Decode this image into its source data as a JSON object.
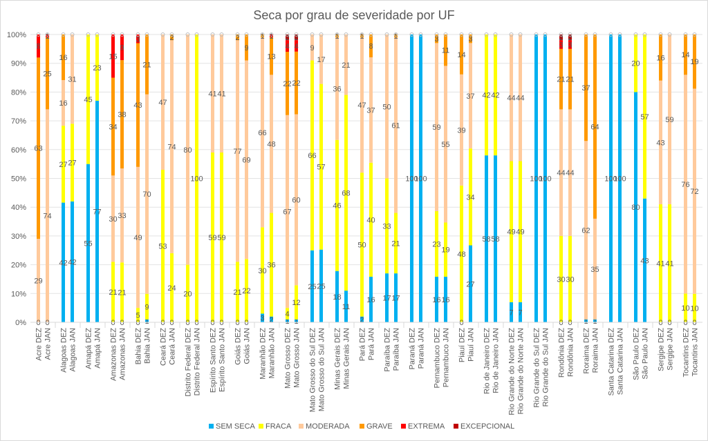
{
  "chart_data": {
    "type": "bar",
    "stacked": "percent",
    "title": "Seca por grau de severidade por UF",
    "xlabel": "",
    "ylabel": "",
    "ylim": [
      0,
      100
    ],
    "yticks": [
      "0%",
      "10%",
      "20%",
      "30%",
      "40%",
      "50%",
      "60%",
      "70%",
      "80%",
      "90%",
      "100%"
    ],
    "grid": true,
    "legend": "bottom",
    "series_names": [
      "SEM SECA",
      "FRACA",
      "MODERADA",
      "GRAVE",
      "EXTREMA",
      "EXCEPCIONAL"
    ],
    "colors": [
      "#00B0F0",
      "#FFFF00",
      "#FFCA9C",
      "#FF9900",
      "#FF0000",
      "#C00000"
    ],
    "groups": [
      {
        "uf": "Acre",
        "bars": [
          {
            "label": "Acre DEZ",
            "values": [
              0,
              0,
              29,
              63,
              8,
              0
            ]
          },
          {
            "label": "Acre JAN",
            "values": [
              0,
              0,
              74,
              25,
              1,
              0
            ]
          }
        ]
      },
      {
        "uf": "Alagoas",
        "bars": [
          {
            "label": "Alagoas DEZ",
            "values": [
              42,
              27,
              16,
              16,
              0,
              0
            ]
          },
          {
            "label": "Alagoas JAN",
            "values": [
              42,
              27,
              31,
              0,
              0,
              0
            ]
          }
        ]
      },
      {
        "uf": "Amapá",
        "bars": [
          {
            "label": "Amapá DEZ",
            "values": [
              55,
              45,
              0,
              0,
              0,
              0
            ]
          },
          {
            "label": "Amapá JAN",
            "values": [
              77,
              23,
              0,
              0,
              0,
              0
            ]
          }
        ]
      },
      {
        "uf": "Amazonas",
        "bars": [
          {
            "label": "Amazonas DEZ",
            "values": [
              0,
              21,
              30,
              34,
              15,
              0
            ]
          },
          {
            "label": "Amazonas JAN",
            "values": [
              0,
              21,
              33,
              38,
              9,
              0
            ]
          }
        ]
      },
      {
        "uf": "Bahia",
        "bars": [
          {
            "label": "Bahia DEZ",
            "values": [
              0,
              5,
              49,
              43,
              3,
              0
            ]
          },
          {
            "label": "Bahia JAN",
            "values": [
              1,
              9,
              70,
              21,
              0,
              0
            ]
          }
        ]
      },
      {
        "uf": "Ceará",
        "bars": [
          {
            "label": "Ceará DEZ",
            "values": [
              0,
              53,
              47,
              0,
              0,
              0
            ]
          },
          {
            "label": "Ceará JAN",
            "values": [
              0,
              24,
              74,
              2,
              0,
              0
            ]
          }
        ]
      },
      {
        "uf": "Distrito Federal",
        "bars": [
          {
            "label": "Distrito Federal DEZ",
            "values": [
              0,
              20,
              80,
              0,
              0,
              0
            ]
          },
          {
            "label": "Distrito Federal JAN",
            "values": [
              0,
              100,
              0,
              0,
              0,
              0
            ]
          }
        ]
      },
      {
        "uf": "Espírito Santo",
        "bars": [
          {
            "label": "Espírito Santo DEZ",
            "values": [
              0,
              59,
              41,
              0,
              0,
              0
            ]
          },
          {
            "label": "Espírito Santo JAN",
            "values": [
              0,
              59,
              41,
              0,
              0,
              0
            ]
          }
        ]
      },
      {
        "uf": "Goiás",
        "bars": [
          {
            "label": "Goiás DEZ",
            "values": [
              0,
              21,
              77,
              2,
              0,
              0
            ]
          },
          {
            "label": "Goiás JAN",
            "values": [
              0,
              22,
              69,
              9,
              0,
              0
            ]
          }
        ]
      },
      {
        "uf": "Maranhão",
        "bars": [
          {
            "label": "Maranhão DEZ",
            "values": [
              3,
              30,
              66,
              1,
              0,
              0
            ]
          },
          {
            "label": "Maranhão JAN",
            "values": [
              2,
              36,
              48,
              13,
              1,
              0
            ]
          }
        ]
      },
      {
        "uf": "Mato Grosso",
        "bars": [
          {
            "label": "Mato Grosso DEZ",
            "values": [
              1,
              4,
              67,
              22,
              4,
              2
            ]
          },
          {
            "label": "Mato Grosso JAN",
            "values": [
              1,
              12,
              60,
              22,
              4,
              2
            ]
          }
        ]
      },
      {
        "uf": "Mato Grosso do Sul",
        "bars": [
          {
            "label": "Mato Grosso do Sul DEZ",
            "values": [
              25,
              66,
              9,
              0,
              0,
              0
            ]
          },
          {
            "label": "Mato Grosso do Sul JAN",
            "values": [
              25,
              57,
              17,
              0,
              0,
              0
            ]
          }
        ]
      },
      {
        "uf": "Minas Gerais",
        "bars": [
          {
            "label": "Minas Gerais DEZ",
            "values": [
              18,
              46,
              36,
              1,
              0,
              0
            ]
          },
          {
            "label": "Minas Gerais JAN",
            "values": [
              11,
              68,
              21,
              0,
              0,
              0
            ]
          }
        ]
      },
      {
        "uf": "Pará",
        "bars": [
          {
            "label": "Pará DEZ",
            "values": [
              2,
              50,
              47,
              1,
              0,
              0
            ]
          },
          {
            "label": "Pará JAN",
            "values": [
              16,
              40,
              37,
              8,
              0,
              0
            ]
          }
        ]
      },
      {
        "uf": "Paraíba",
        "bars": [
          {
            "label": "Paraíba DEZ",
            "values": [
              17,
              33,
              50,
              0,
              0,
              0
            ]
          },
          {
            "label": "Paraíba JAN",
            "values": [
              17,
              21,
              61,
              1,
              0,
              0
            ]
          }
        ]
      },
      {
        "uf": "Paraná",
        "bars": [
          {
            "label": "Paraná DEZ",
            "values": [
              100,
              0,
              0,
              0,
              0,
              0
            ]
          },
          {
            "label": "Paraná JAN",
            "values": [
              100,
              0,
              0,
              0,
              0,
              0
            ]
          }
        ]
      },
      {
        "uf": "Pernambuco",
        "bars": [
          {
            "label": "Pernambuco DEZ",
            "values": [
              16,
              23,
              59,
              3,
              0,
              0
            ]
          },
          {
            "label": "Pernambuco JAN",
            "values": [
              16,
              19,
              55,
              11,
              0,
              0
            ]
          }
        ]
      },
      {
        "uf": "Piauí",
        "bars": [
          {
            "label": "Piauí DEZ",
            "values": [
              0,
              48,
              39,
              14,
              0,
              0
            ]
          },
          {
            "label": "Piauí JAN",
            "values": [
              27,
              34,
              37,
              3,
              0,
              0
            ]
          }
        ]
      },
      {
        "uf": "Rio de Janeiro",
        "bars": [
          {
            "label": "Rio de Janeiro DEZ",
            "values": [
              58,
              42,
              0,
              0,
              0,
              0
            ]
          },
          {
            "label": "Rio de Janeiro JAN",
            "values": [
              58,
              42,
              0,
              0,
              0,
              0
            ]
          }
        ]
      },
      {
        "uf": "Rio Grande do Norte",
        "bars": [
          {
            "label": "Rio Grande do Norte DEZ",
            "values": [
              7,
              49,
              44,
              0,
              0,
              0
            ]
          },
          {
            "label": "Rio Grande do Norte JAN",
            "values": [
              7,
              49,
              44,
              0,
              0,
              0
            ]
          }
        ]
      },
      {
        "uf": "Rio Grande do Sul",
        "bars": [
          {
            "label": "Rio Grande do Sul DEZ",
            "values": [
              100,
              0,
              0,
              0,
              0,
              0
            ]
          },
          {
            "label": "Rio Grande do Sul JAN",
            "values": [
              100,
              0,
              0,
              0,
              0,
              0
            ]
          }
        ]
      },
      {
        "uf": "Rondônia",
        "bars": [
          {
            "label": "Rondônia DEZ",
            "values": [
              0,
              30,
              44,
              21,
              3,
              2
            ]
          },
          {
            "label": "Rondônia JAN",
            "values": [
              0,
              30,
              44,
              21,
              3,
              2
            ]
          }
        ]
      },
      {
        "uf": "Roraima",
        "bars": [
          {
            "label": "Roraima DEZ",
            "values": [
              1,
              0,
              62,
              37,
              0,
              0
            ]
          },
          {
            "label": "Roraima JAN",
            "values": [
              1,
              0,
              35,
              64,
              0,
              0
            ]
          }
        ]
      },
      {
        "uf": "Santa Catarina",
        "bars": [
          {
            "label": "Santa Catarina DEZ",
            "values": [
              100,
              0,
              0,
              0,
              0,
              0
            ]
          },
          {
            "label": "Santa Catarina JAN",
            "values": [
              100,
              0,
              0,
              0,
              0,
              0
            ]
          }
        ]
      },
      {
        "uf": "São Paulo",
        "bars": [
          {
            "label": "São Paulo DEZ",
            "values": [
              80,
              20,
              0,
              0,
              0,
              0
            ]
          },
          {
            "label": "São Paulo JAN",
            "values": [
              43,
              57,
              0,
              0,
              0,
              0
            ]
          }
        ]
      },
      {
        "uf": "Sergipe",
        "bars": [
          {
            "label": "Sergipe DEZ",
            "values": [
              0,
              41,
              43,
              16,
              0,
              0
            ]
          },
          {
            "label": "Sergipe JAN",
            "values": [
              0,
              41,
              59,
              0,
              0,
              0
            ]
          }
        ]
      },
      {
        "uf": "Tocantins",
        "bars": [
          {
            "label": "Tocantins DEZ",
            "values": [
              0,
              10,
              76,
              14,
              0,
              0
            ]
          },
          {
            "label": "Tocantins JAN",
            "values": [
              0,
              10,
              72,
              19,
              0,
              0
            ]
          }
        ]
      }
    ]
  }
}
